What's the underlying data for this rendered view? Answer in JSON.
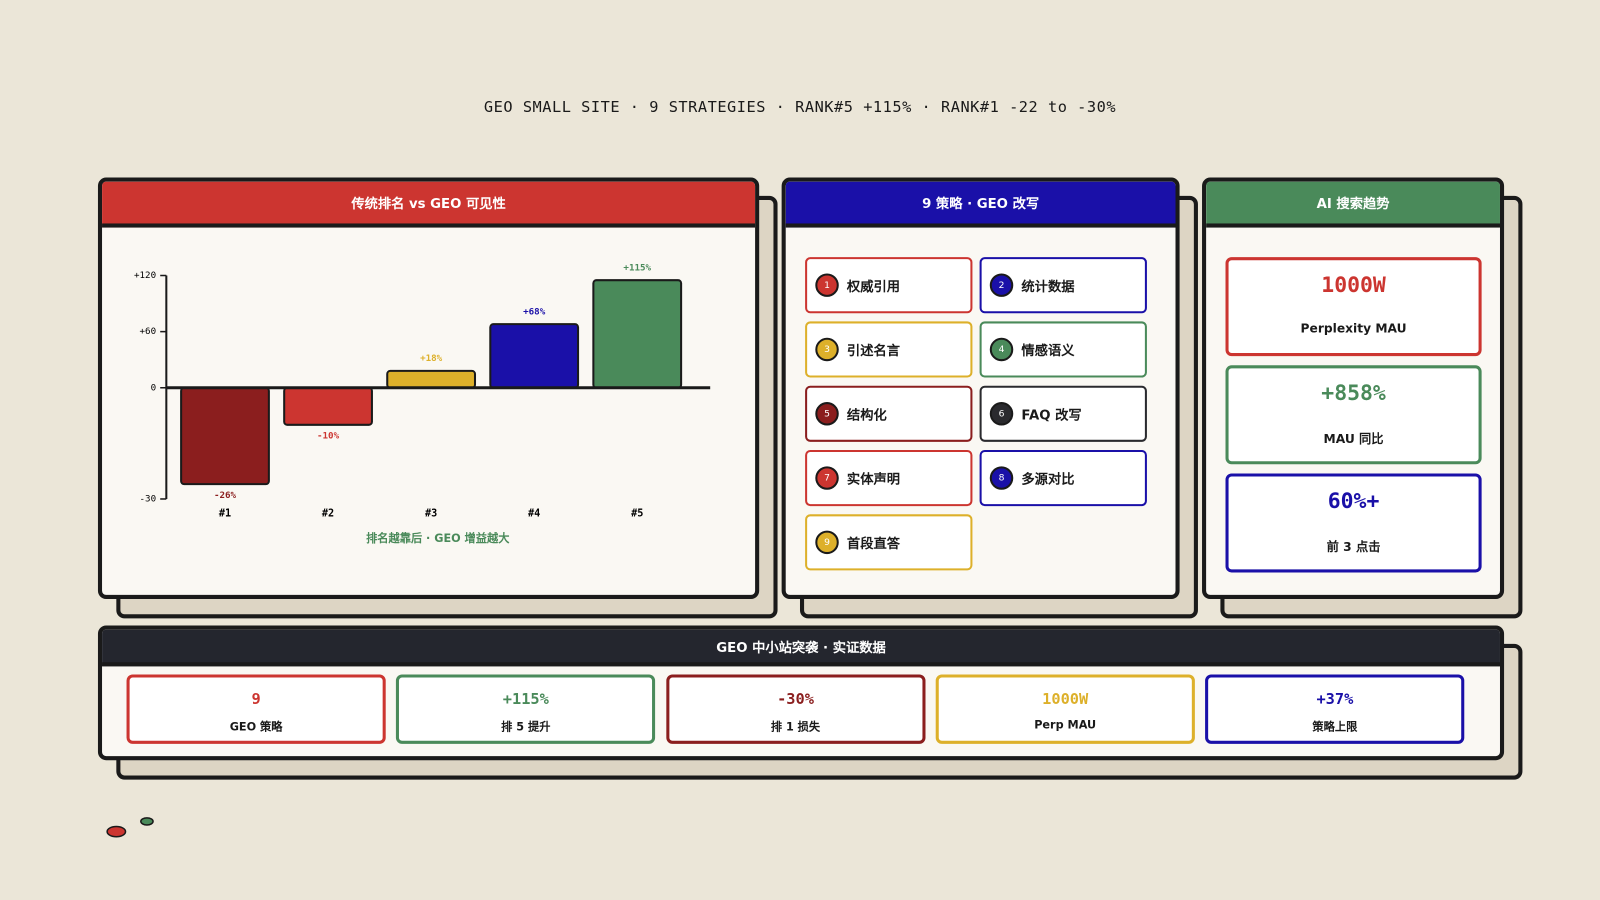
{
  "header": {
    "title": "GEO SMALL SITE · 9 STRATEGIES · RANK#5 +115% · RANK#1 -22 to -30%"
  },
  "chart_panel": {
    "title": "传统排名 vs GEO 可见性"
  },
  "chart_data": {
    "type": "bar",
    "categories": [
      "#1",
      "#2",
      "#3",
      "#4",
      "#5"
    ],
    "values": [
      -26,
      -10,
      18,
      68,
      115
    ],
    "value_labels": [
      "-26%",
      "-10%",
      "+18%",
      "+68%",
      "+115%"
    ],
    "colors": [
      "#8b1e1e",
      "#cc3530",
      "#ddb02a",
      "#1a10a8",
      "#4a8a5a"
    ],
    "ylim": [
      -30,
      120
    ],
    "yticks": [
      {
        "value": 120,
        "label": "+120"
      },
      {
        "value": 60,
        "label": "+60"
      },
      0,
      -30
    ],
    "caption": "排名越靠后 · GEO 增益越大"
  },
  "strategies": {
    "title": "9 策略 · GEO 改写",
    "items": [
      {
        "number": "1",
        "label": "权威引用",
        "color": "#cc3530"
      },
      {
        "number": "2",
        "label": "统计数据",
        "color": "#1a10a8"
      },
      {
        "number": "3",
        "label": "引述名言",
        "color": "#ddb02a"
      },
      {
        "number": "4",
        "label": "情感语义",
        "color": "#4a8a5a"
      },
      {
        "number": "5",
        "label": "结构化",
        "color": "#8b1e1e"
      },
      {
        "number": "6",
        "label": "FAQ 改写",
        "color": "#2a2a2e"
      },
      {
        "number": "7",
        "label": "实体声明",
        "color": "#cc3530"
      },
      {
        "number": "8",
        "label": "多源对比",
        "color": "#1a10a8"
      },
      {
        "number": "9",
        "label": "首段直答",
        "color": "#ddb02a"
      }
    ]
  },
  "trends": {
    "title": "AI 搜索趋势",
    "cards": [
      {
        "value": "1000W",
        "label": "Perplexity MAU",
        "color": "#cc3530"
      },
      {
        "value": "+858%",
        "label": "MAU 同比",
        "color": "#4a8a5a"
      },
      {
        "value": "60%+",
        "label": "前 3 点击",
        "color": "#1a10a8"
      }
    ]
  },
  "summary": {
    "title": "GEO 中小站突袭 · 实证数据",
    "cards": [
      {
        "value": "9",
        "label": "GEO 策略",
        "color": "#cc3530"
      },
      {
        "value": "+115%",
        "label": "排 5 提升",
        "color": "#4a8a5a"
      },
      {
        "value": "-30%",
        "label": "排 1 损失",
        "color": "#8b1e1e"
      },
      {
        "value": "1000W",
        "label": "Perp MAU",
        "color": "#ddb02a"
      },
      {
        "value": "+37%",
        "label": "策略上限",
        "color": "#1a10a8"
      }
    ]
  }
}
